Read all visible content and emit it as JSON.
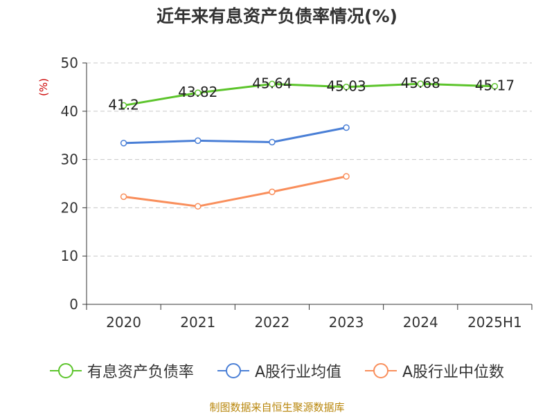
{
  "chart_data": {
    "type": "line",
    "title": "近年来有息资产负债率情况(%)",
    "ylabel": "(%)",
    "xlabel": "",
    "categories": [
      "2020",
      "2021",
      "2022",
      "2023",
      "2024",
      "2025H1"
    ],
    "ylim": [
      0,
      50
    ],
    "yticks": [
      0,
      10,
      20,
      30,
      40,
      50
    ],
    "grid": true,
    "legend_position": "bottom",
    "series": [
      {
        "name": "有息资产负债率",
        "color": "#5cc42b",
        "show_labels": true,
        "values": [
          41.2,
          43.82,
          45.64,
          45.03,
          45.68,
          45.17
        ]
      },
      {
        "name": "A股行业均值",
        "color": "#4a7fd6",
        "show_labels": false,
        "values": [
          33.4,
          33.9,
          33.6,
          36.6,
          null,
          null
        ]
      },
      {
        "name": "A股行业中位数",
        "color": "#f98e5b",
        "show_labels": false,
        "values": [
          22.3,
          20.3,
          23.3,
          26.5,
          null,
          null
        ]
      }
    ]
  },
  "footer": {
    "source": "制图数据来自恒生聚源数据库"
  }
}
